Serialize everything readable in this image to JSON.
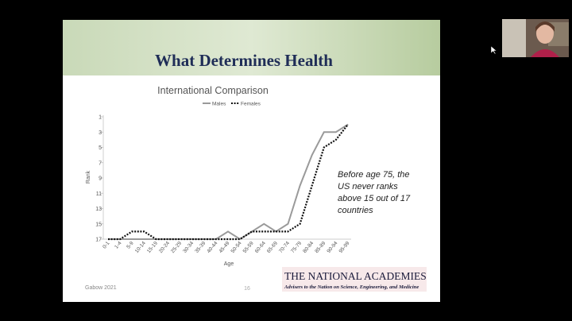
{
  "slide": {
    "title": "What Determines Health",
    "footer": "Gabow 2021",
    "page_number": "16",
    "logo": {
      "name": "THE NATIONAL ACADEMIES",
      "tagline": "Advisers to the Nation on Science, Engineering, and Medicine"
    },
    "chart_data": {
      "type": "line",
      "title": "International Comparison",
      "xlabel": "Age",
      "ylabel": "Rank",
      "categories": [
        "0-1",
        "1-4",
        "5-9",
        "10-14",
        "15-19",
        "20-24",
        "25-29",
        "30-34",
        "35-39",
        "40-44",
        "45-49",
        "50-54",
        "55-59",
        "60-64",
        "65-69",
        "70-74",
        "75-79",
        "80-84",
        "85-89",
        "90-94",
        "95-99"
      ],
      "series": [
        {
          "name": "Males",
          "color": "#9a9a9a",
          "line_style": "solid",
          "values": [
            17,
            17,
            17,
            17,
            17,
            17,
            17,
            17,
            17,
            17,
            16,
            17,
            16,
            15,
            16,
            15,
            10,
            6,
            3,
            3,
            2
          ]
        },
        {
          "name": "Females",
          "color": "#111111",
          "line_style": "dotted",
          "values": [
            17,
            17,
            16,
            16,
            17,
            17,
            17,
            17,
            17,
            17,
            17,
            17,
            16,
            16,
            16,
            16,
            15,
            10,
            5,
            4,
            2
          ]
        }
      ],
      "ylim": [
        17,
        1
      ],
      "yticks": [
        1,
        3,
        5,
        7,
        9,
        11,
        13,
        15,
        17
      ],
      "annotation": [
        "Before age 75, the",
        "US never ranks",
        "above 15 out of 17",
        "countries"
      ]
    }
  }
}
